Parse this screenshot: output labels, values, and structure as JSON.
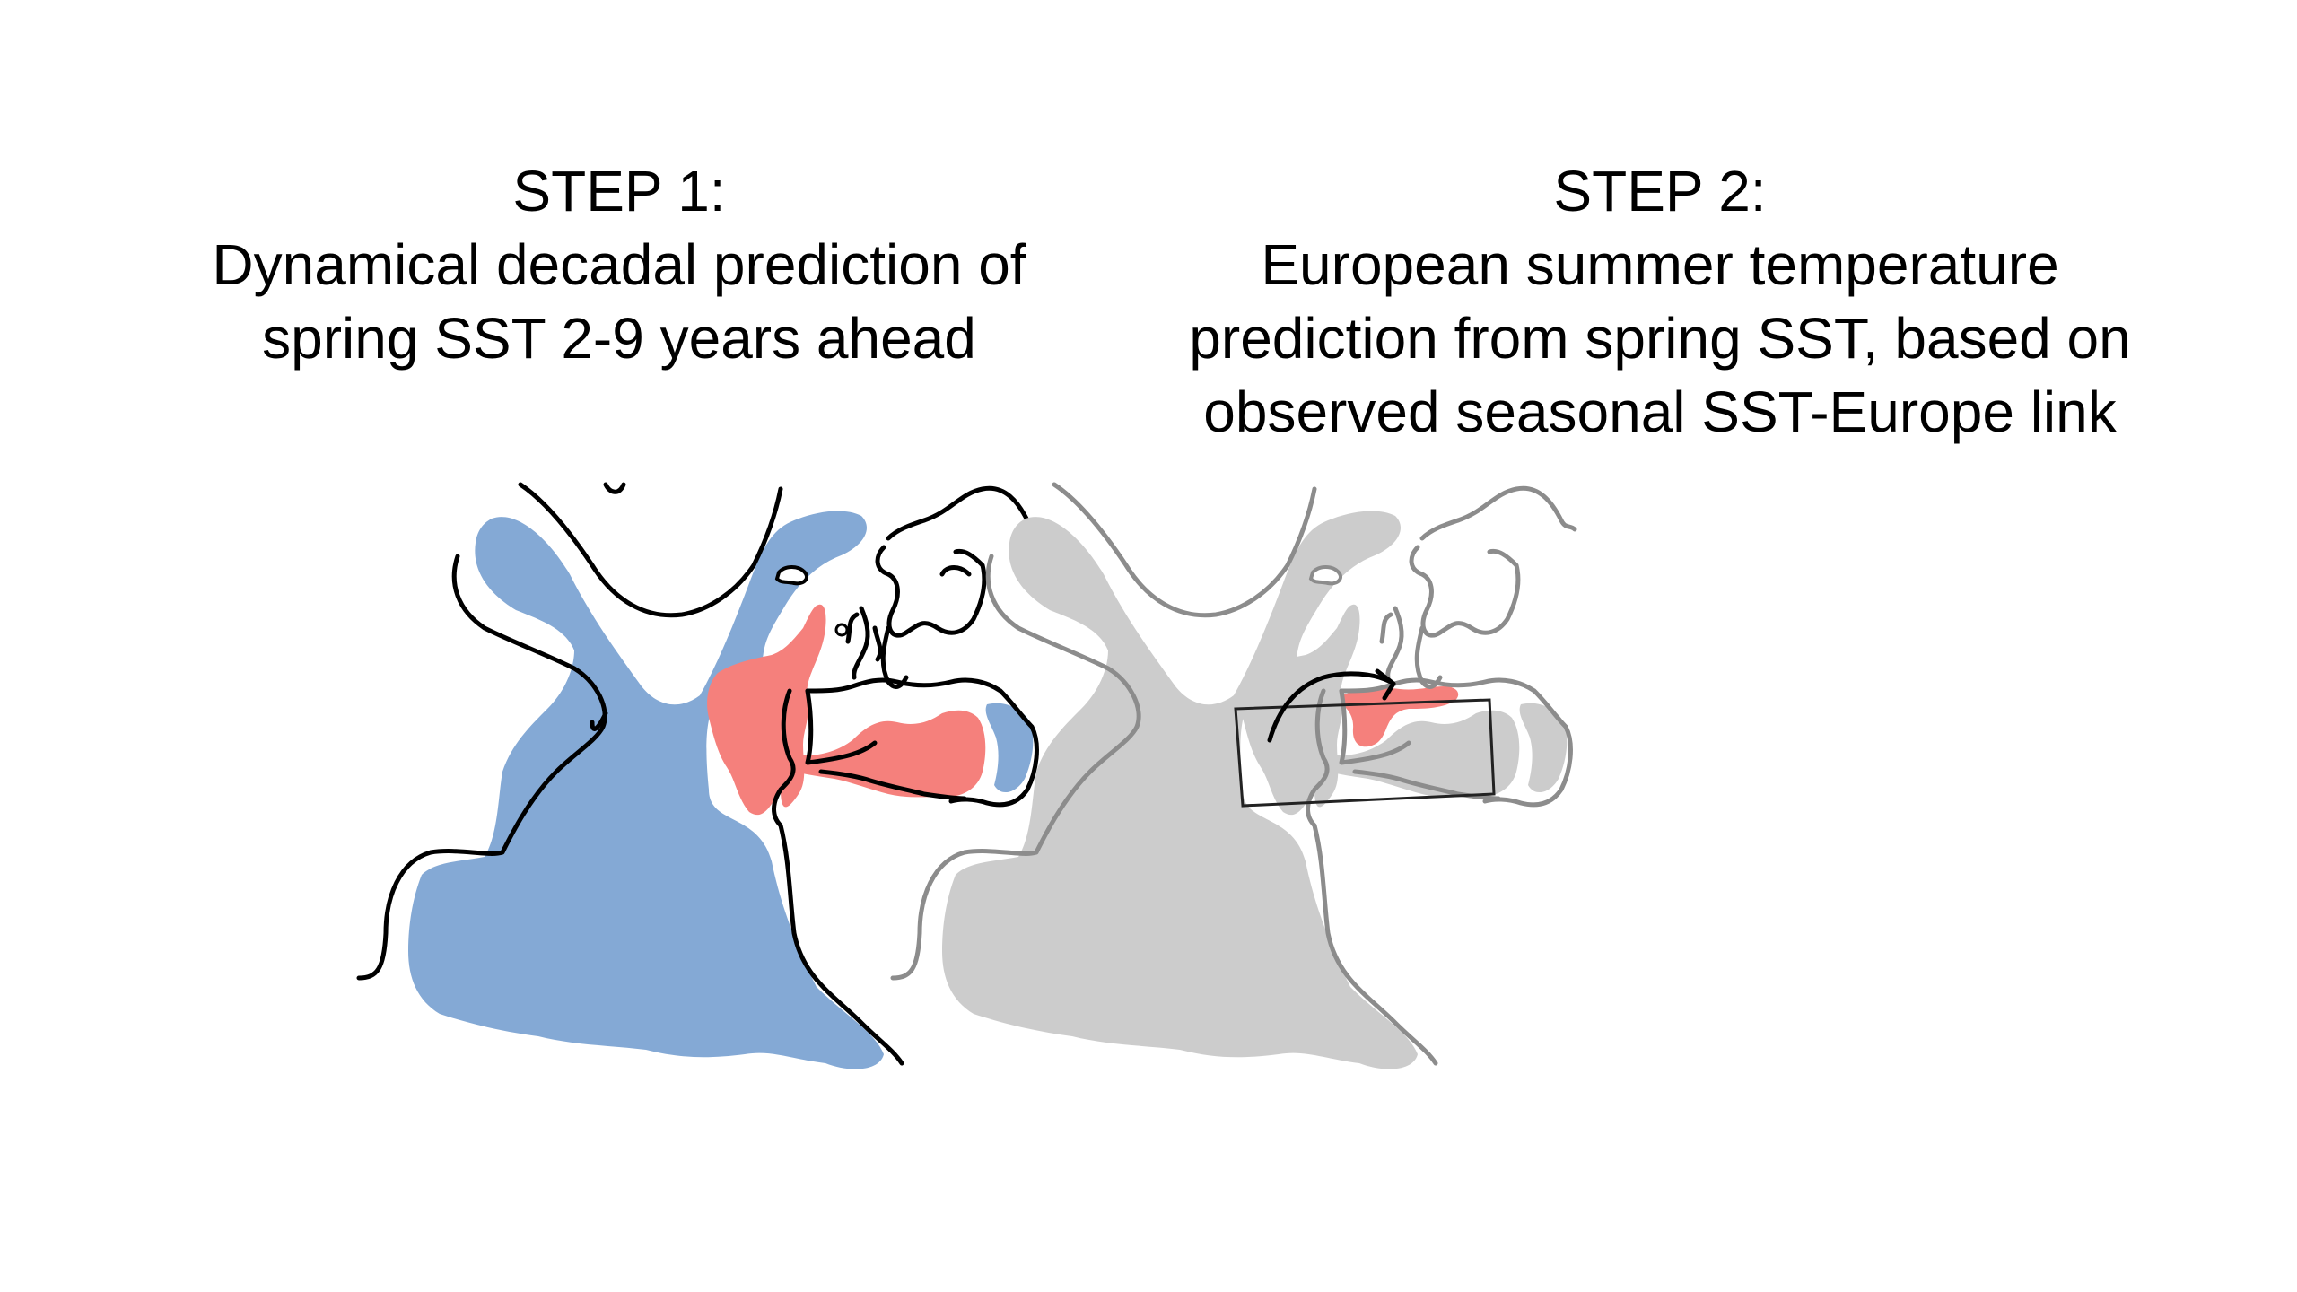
{
  "step1": {
    "heading": "STEP 1:",
    "line1": "Dynamical decadal prediction of",
    "line2": "spring SST 2-9 years ahead"
  },
  "step2": {
    "heading": "STEP 2:",
    "line1": "European summer temperature",
    "line2": "prediction from spring SST, based on",
    "line3": "observed seasonal SST-Europe link"
  },
  "colors": {
    "cold_anomaly": "#84a9d5",
    "warm_anomaly": "#f5807c",
    "faded": "#cccccc",
    "coastline": "#000000",
    "faded_coastline": "#8c8c8c"
  }
}
